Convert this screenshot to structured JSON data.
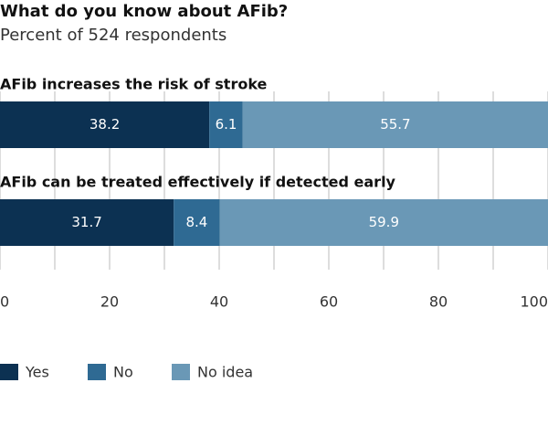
{
  "chart_data": {
    "type": "stacked-bar",
    "title": "What do you know about AFib?",
    "subtitle": "Percent of 524 respondents",
    "categories": [
      "AFib increases the risk of stroke",
      "AFib can be treated effectively if detected early"
    ],
    "series": [
      {
        "name": "Yes",
        "color": "#0c3152",
        "values": [
          38.2,
          31.7
        ]
      },
      {
        "name": "No",
        "color": "#2f6a93",
        "values": [
          6.1,
          8.4
        ]
      },
      {
        "name": "No idea",
        "color": "#6a98b6",
        "values": [
          55.7,
          59.9
        ]
      }
    ],
    "xlim": [
      0,
      100
    ],
    "xticks": [
      0,
      20,
      40,
      60,
      80,
      100
    ],
    "xminor": [
      10,
      30,
      50,
      70,
      90
    ],
    "grid": true
  }
}
